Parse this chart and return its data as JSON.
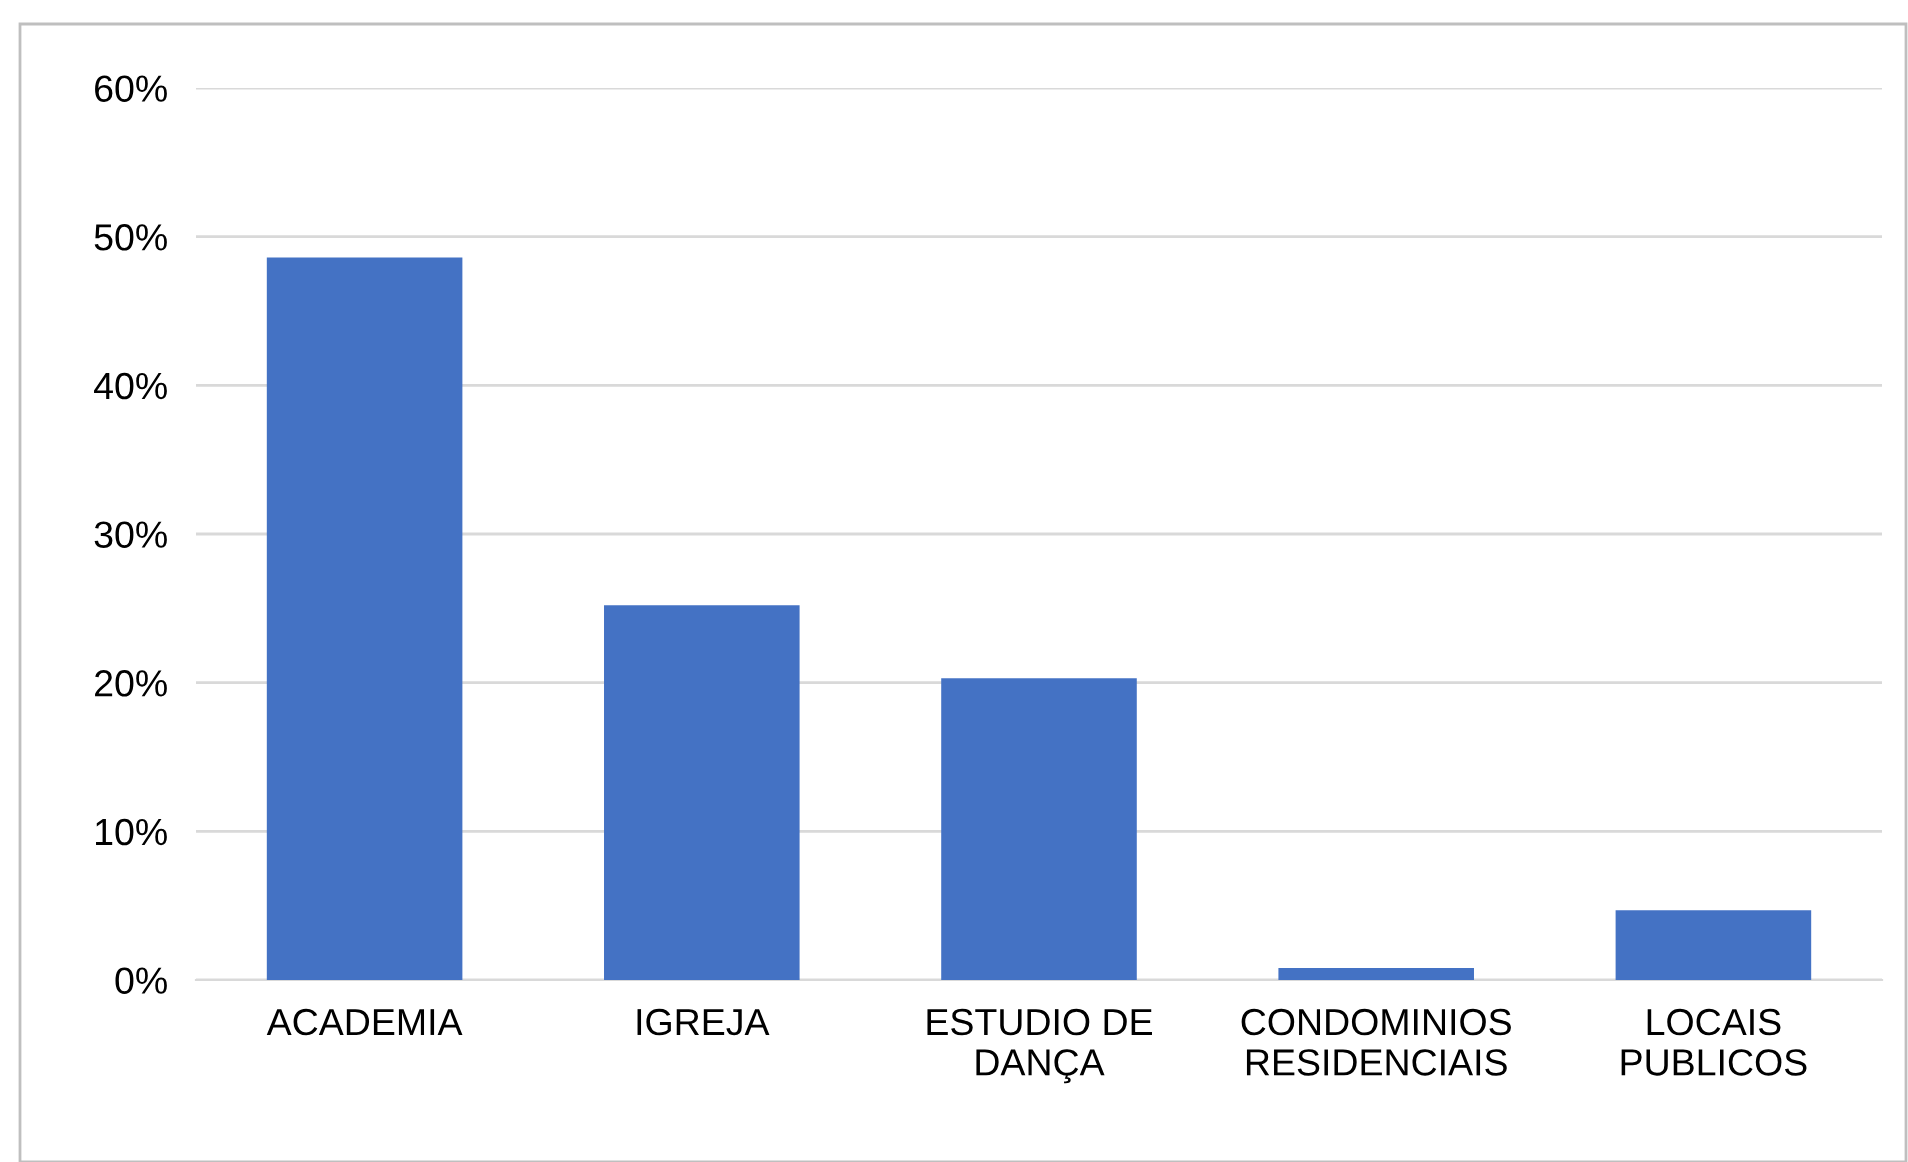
{
  "chart_data": {
    "type": "bar",
    "categories": [
      "ACADEMIA",
      "IGREJA",
      "ESTUDIO DE\nDANÇA",
      "CONDOMINIOS\nRESIDENCIAIS",
      "LOCAIS\nPUBLICOS"
    ],
    "values": [
      48.6,
      25.2,
      20.3,
      0.8,
      4.7
    ],
    "color": "#4472c4",
    "ylim": [
      0,
      60
    ],
    "yticks": [
      {
        "value": 0,
        "label": "0%"
      },
      {
        "value": 10,
        "label": "10%"
      },
      {
        "value": 20,
        "label": "20%"
      },
      {
        "value": 30,
        "label": "30%"
      },
      {
        "value": 40,
        "label": "40%"
      },
      {
        "value": 50,
        "label": "50%"
      },
      {
        "value": 60,
        "label": "60%"
      }
    ],
    "grid": "y"
  }
}
